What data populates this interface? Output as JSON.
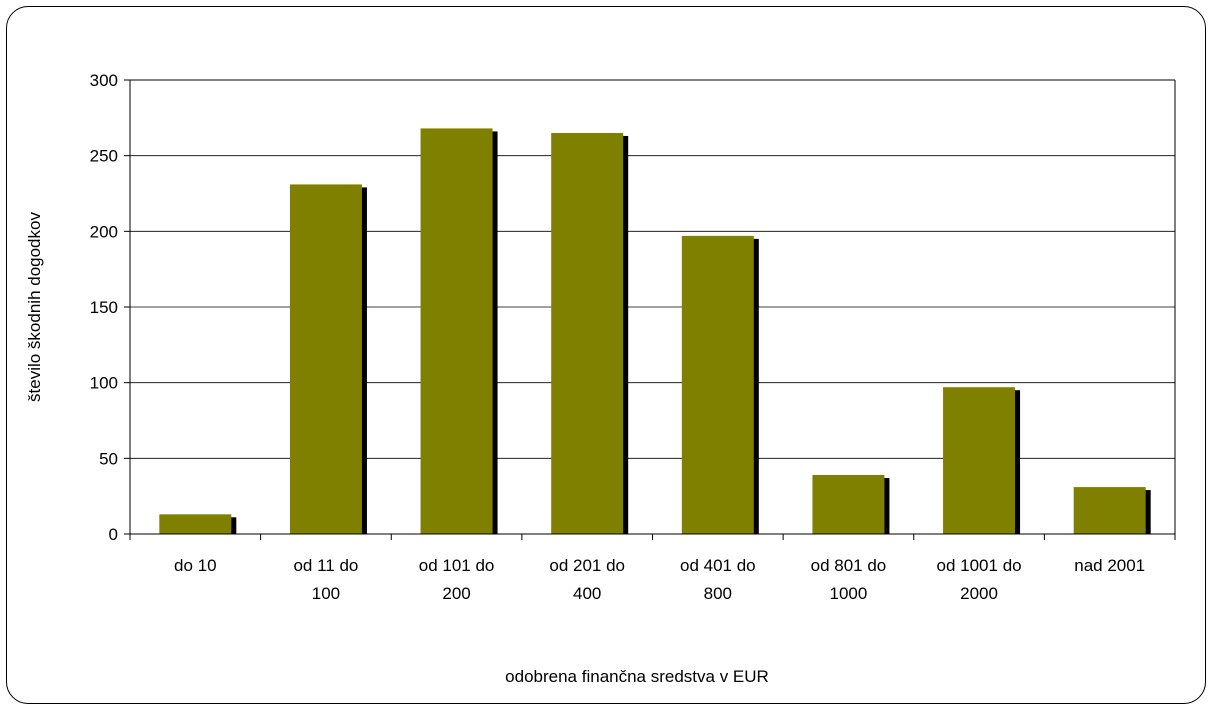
{
  "chart_data": {
    "type": "bar",
    "categories": [
      [
        "do 10"
      ],
      [
        "od 11 do",
        "100"
      ],
      [
        "od 101 do",
        "200"
      ],
      [
        "od 201 do",
        "400"
      ],
      [
        "od 401 do",
        "800"
      ],
      [
        "od 801 do",
        "1000"
      ],
      [
        "od 1001 do",
        "2000"
      ],
      [
        "nad 2001"
      ]
    ],
    "values": [
      13,
      231,
      268,
      265,
      197,
      39,
      97,
      31
    ],
    "xlabel": "odobrena finančna sredstva v EUR",
    "ylabel": "število škodnih dogodkov",
    "ylim": [
      0,
      300
    ],
    "yticks": [
      0,
      50,
      100,
      150,
      200,
      250,
      300
    ],
    "grid": true,
    "bar_color": "#808000",
    "shadow_color": "#000000"
  }
}
